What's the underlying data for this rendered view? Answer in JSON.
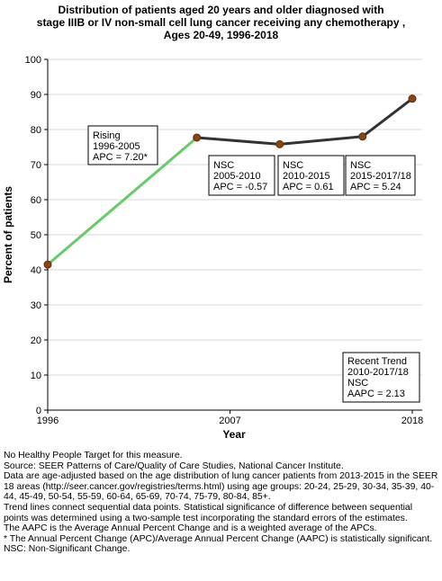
{
  "title_lines": [
    "Distribution of patients aged 20 years and older diagnosed with",
    "stage IIIB or IV non-small cell lung cancer receiving any chemotherapy ,",
    "Ages 20-49,  1996-2018"
  ],
  "chart_data": {
    "type": "line",
    "xlabel": "Year",
    "ylabel": "Percent of patients",
    "xlim": [
      1996,
      2018
    ],
    "ylim": [
      0,
      100
    ],
    "x_ticks": [
      "1996",
      "2007",
      "2018"
    ],
    "y_ticks": [
      "0",
      "10",
      "20",
      "30",
      "40",
      "50",
      "60",
      "70",
      "80",
      "90",
      "100"
    ],
    "points": [
      {
        "x": 1996,
        "y": 41.5
      },
      {
        "x": 2005,
        "y": 77.7
      },
      {
        "x": 2010,
        "y": 75.8
      },
      {
        "x": 2015,
        "y": 78.0
      },
      {
        "x": 2018,
        "y": 88.8
      }
    ],
    "segments": [
      {
        "from": 0,
        "to": 1,
        "color": "#66cc66"
      },
      {
        "from": 1,
        "to": 2,
        "color": "#333333"
      },
      {
        "from": 2,
        "to": 3,
        "color": "#333333"
      },
      {
        "from": 3,
        "to": 4,
        "color": "#333333"
      }
    ],
    "marker_color": "#8b4513",
    "annotations": [
      {
        "lines": [
          "Rising",
          "1996-2005",
          "APC =  7.20*"
        ]
      },
      {
        "lines": [
          "NSC",
          "2005-2010",
          "APC = -0.57"
        ]
      },
      {
        "lines": [
          "NSC",
          "2010-2015",
          "APC =  0.61"
        ]
      },
      {
        "lines": [
          "NSC",
          "2015-2017/18",
          "APC =  5.24"
        ]
      },
      {
        "lines": [
          "Recent Trend",
          "2010-2017/18",
          "NSC",
          "AAPC =  2.13"
        ]
      }
    ]
  },
  "notes": [
    "No Healthy People Target for this measure.",
    "Source: SEER Patterns of Care/Quality of Care Studies, National Cancer Institute.",
    "Data are age-adjusted based on the age distribution of lung cancer patients from 2013-2015 in the SEER 18 areas (http://seer.cancer.gov/registries/terms.html) using age groups: 20-24, 25-29, 30-34, 35-39, 40-44, 45-49, 50-54, 55-59, 60-64, 65-69, 70-74, 75-79, 80-84, 85+.",
    "Trend lines connect sequential data points. Statistical significance of difference between sequential points was determined using a two-sample test incorporating the standard errors of the estimates.",
    "The AAPC is the Average Annual Percent Change and is a weighted average of the APCs.",
    "* The Annual Percent Change (APC)/Average Annual Percent Change (AAPC) is statistically significant.",
    "NSC: Non-Significant Change."
  ]
}
